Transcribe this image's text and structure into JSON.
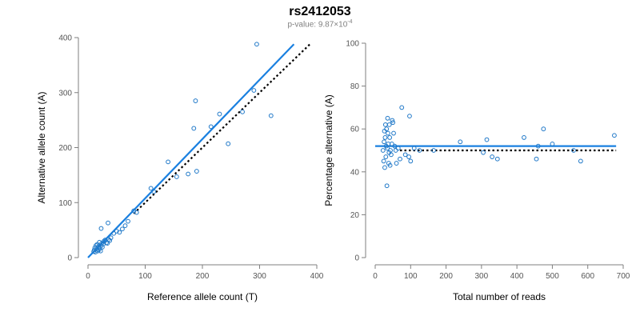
{
  "title": "rs2412053",
  "subtitle": {
    "prefix": "p-value: 9.87×10",
    "exponent": "-4"
  },
  "colors": {
    "point": "#1f78c8",
    "fit_line": "#1a80e0",
    "reference_line": "#000000"
  },
  "chart_data": [
    {
      "type": "scatter",
      "xlabel": "Reference allele count (T)",
      "ylabel": "Alternative allele count (A)",
      "xlim": [
        0,
        400
      ],
      "ylim": [
        0,
        400
      ],
      "xticks": [
        0,
        100,
        200,
        300,
        400
      ],
      "yticks": [
        0,
        100,
        200,
        300,
        400
      ],
      "grid": false,
      "points": [
        [
          10,
          11
        ],
        [
          11,
          14
        ],
        [
          12,
          18
        ],
        [
          13,
          10
        ],
        [
          14,
          22
        ],
        [
          15,
          16
        ],
        [
          16,
          24
        ],
        [
          17,
          12
        ],
        [
          18,
          20
        ],
        [
          19,
          14
        ],
        [
          20,
          28
        ],
        [
          21,
          18
        ],
        [
          22,
          12
        ],
        [
          23,
          22
        ],
        [
          24,
          26
        ],
        [
          25,
          19
        ],
        [
          27,
          25
        ],
        [
          28,
          30
        ],
        [
          30,
          32
        ],
        [
          32,
          27
        ],
        [
          34,
          26
        ],
        [
          36,
          33
        ],
        [
          38,
          31
        ],
        [
          40,
          36
        ],
        [
          45,
          44
        ],
        [
          50,
          48
        ],
        [
          55,
          46
        ],
        [
          60,
          52
        ],
        [
          65,
          58
        ],
        [
          70,
          66
        ],
        [
          35,
          63
        ],
        [
          23,
          53
        ],
        [
          80,
          85
        ],
        [
          85,
          82
        ],
        [
          110,
          126
        ],
        [
          115,
          120
        ],
        [
          140,
          174
        ],
        [
          155,
          147
        ],
        [
          175,
          152
        ],
        [
          185,
          235
        ],
        [
          188,
          285
        ],
        [
          190,
          157
        ],
        [
          215,
          238
        ],
        [
          230,
          261
        ],
        [
          245,
          207
        ],
        [
          270,
          265
        ],
        [
          290,
          304
        ],
        [
          295,
          388
        ],
        [
          320,
          258
        ]
      ],
      "fit_line": {
        "x": [
          0,
          360
        ],
        "y": [
          0,
          388
        ]
      },
      "reference_line": {
        "x": [
          80,
          388
        ],
        "y": [
          80,
          388
        ]
      }
    },
    {
      "type": "scatter",
      "xlabel": "Total number of reads",
      "ylabel": "Percentage alternative (A)",
      "xlim": [
        0,
        700
      ],
      "ylim": [
        0,
        100
      ],
      "xticks": [
        0,
        100,
        200,
        300,
        400,
        500,
        600,
        700
      ],
      "yticks": [
        0,
        20,
        40,
        60,
        80,
        100
      ],
      "grid": false,
      "points": [
        [
          22,
          50
        ],
        [
          24,
          45
        ],
        [
          25,
          54
        ],
        [
          26,
          59
        ],
        [
          27,
          42
        ],
        [
          28,
          56
        ],
        [
          29,
          62
        ],
        [
          30,
          47
        ],
        [
          31,
          52
        ],
        [
          32,
          60
        ],
        [
          33,
          33.5
        ],
        [
          34,
          51
        ],
        [
          35,
          65
        ],
        [
          36,
          58
        ],
        [
          37,
          53
        ],
        [
          38,
          44
        ],
        [
          39,
          49
        ],
        [
          40,
          62
        ],
        [
          41,
          56
        ],
        [
          42,
          43
        ],
        [
          43,
          50
        ],
        [
          45,
          48
        ],
        [
          47,
          53
        ],
        [
          48,
          64
        ],
        [
          50,
          63
        ],
        [
          52,
          58
        ],
        [
          55,
          52
        ],
        [
          58,
          50
        ],
        [
          60,
          44
        ],
        [
          65,
          51
        ],
        [
          70,
          46
        ],
        [
          75,
          70
        ],
        [
          85,
          48
        ],
        [
          95,
          47
        ],
        [
          97,
          66
        ],
        [
          100,
          45
        ],
        [
          110,
          51
        ],
        [
          125,
          50
        ],
        [
          165,
          50
        ],
        [
          240,
          54
        ],
        [
          305,
          49
        ],
        [
          315,
          55
        ],
        [
          330,
          47
        ],
        [
          345,
          46
        ],
        [
          420,
          56
        ],
        [
          455,
          46
        ],
        [
          460,
          52
        ],
        [
          475,
          60
        ],
        [
          500,
          53
        ],
        [
          560,
          50
        ],
        [
          580,
          45
        ],
        [
          675,
          57
        ]
      ],
      "fit_line": {
        "x": [
          0,
          680
        ],
        "y": [
          52,
          52
        ]
      },
      "reference_line": {
        "x": [
          70,
          680
        ],
        "y": [
          50,
          50
        ]
      }
    }
  ]
}
